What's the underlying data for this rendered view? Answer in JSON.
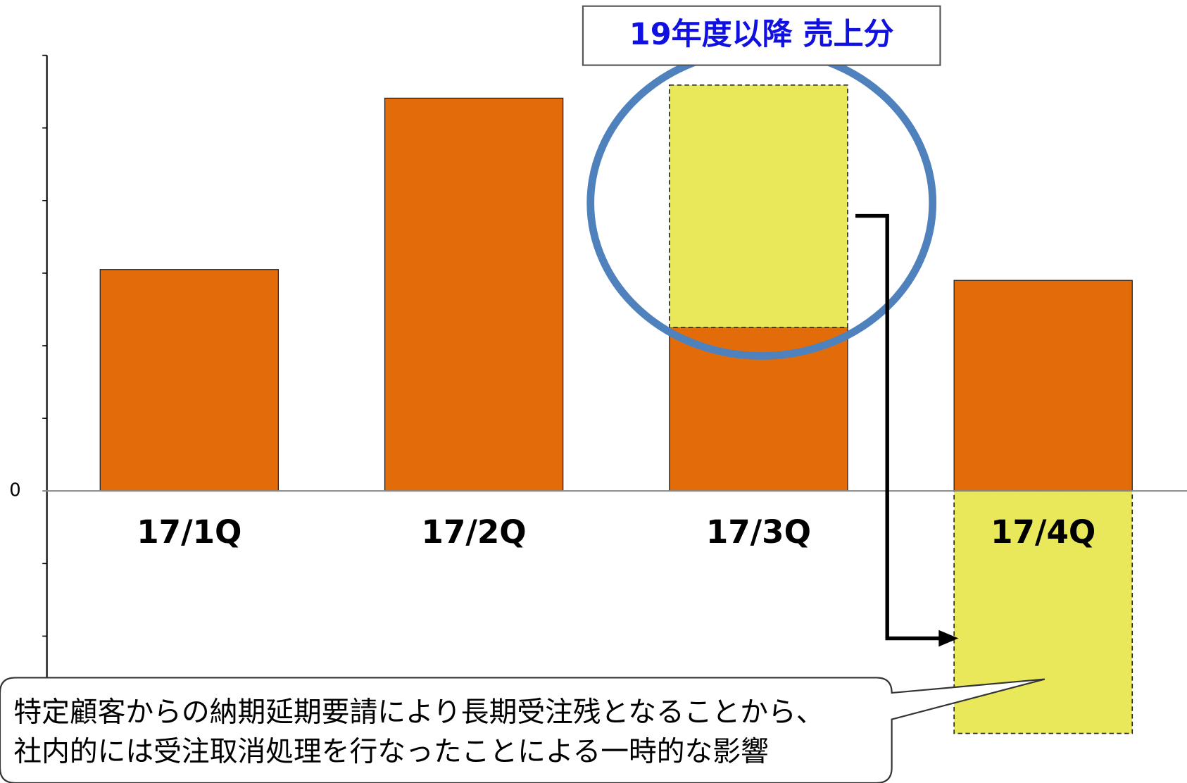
{
  "chart_data": {
    "type": "bar",
    "stacked": true,
    "categories": [
      "17/1Q",
      "17/2Q",
      "17/3Q",
      "17/4Q"
    ],
    "series": [
      {
        "color": "#e36c0a",
        "values": [
          3.05,
          5.41,
          2.25,
          2.9
        ]
      },
      {
        "color": "#e8e85a",
        "values": [
          null,
          null,
          3.34,
          -3.34
        ]
      }
    ],
    "ylim": [
      -3,
      6
    ],
    "yticks": [
      0
    ],
    "minor_yticks": [
      -3,
      -2,
      -1,
      1,
      2,
      3,
      4,
      5,
      6
    ],
    "annotations": [
      "19年度以降 売上分",
      "特定顧客からの納期延期要請により長期受注残となることから、",
      "社内的には受注取消処理を行なったことによる一時的な影響"
    ]
  }
}
